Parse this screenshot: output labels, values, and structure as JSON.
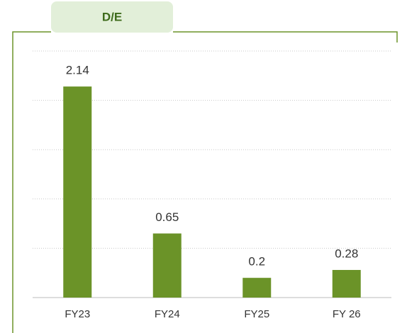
{
  "chart_data": {
    "type": "bar",
    "title": "D/E",
    "categories": [
      "FY23",
      "FY24",
      "FY25",
      "FY 26"
    ],
    "values": [
      2.14,
      0.65,
      0.2,
      0.28
    ],
    "color": "#6b9328",
    "ylim": [
      0,
      2.5
    ],
    "yticks": [
      0,
      0.5,
      1,
      1.5,
      2,
      2.5
    ],
    "grid": true
  }
}
